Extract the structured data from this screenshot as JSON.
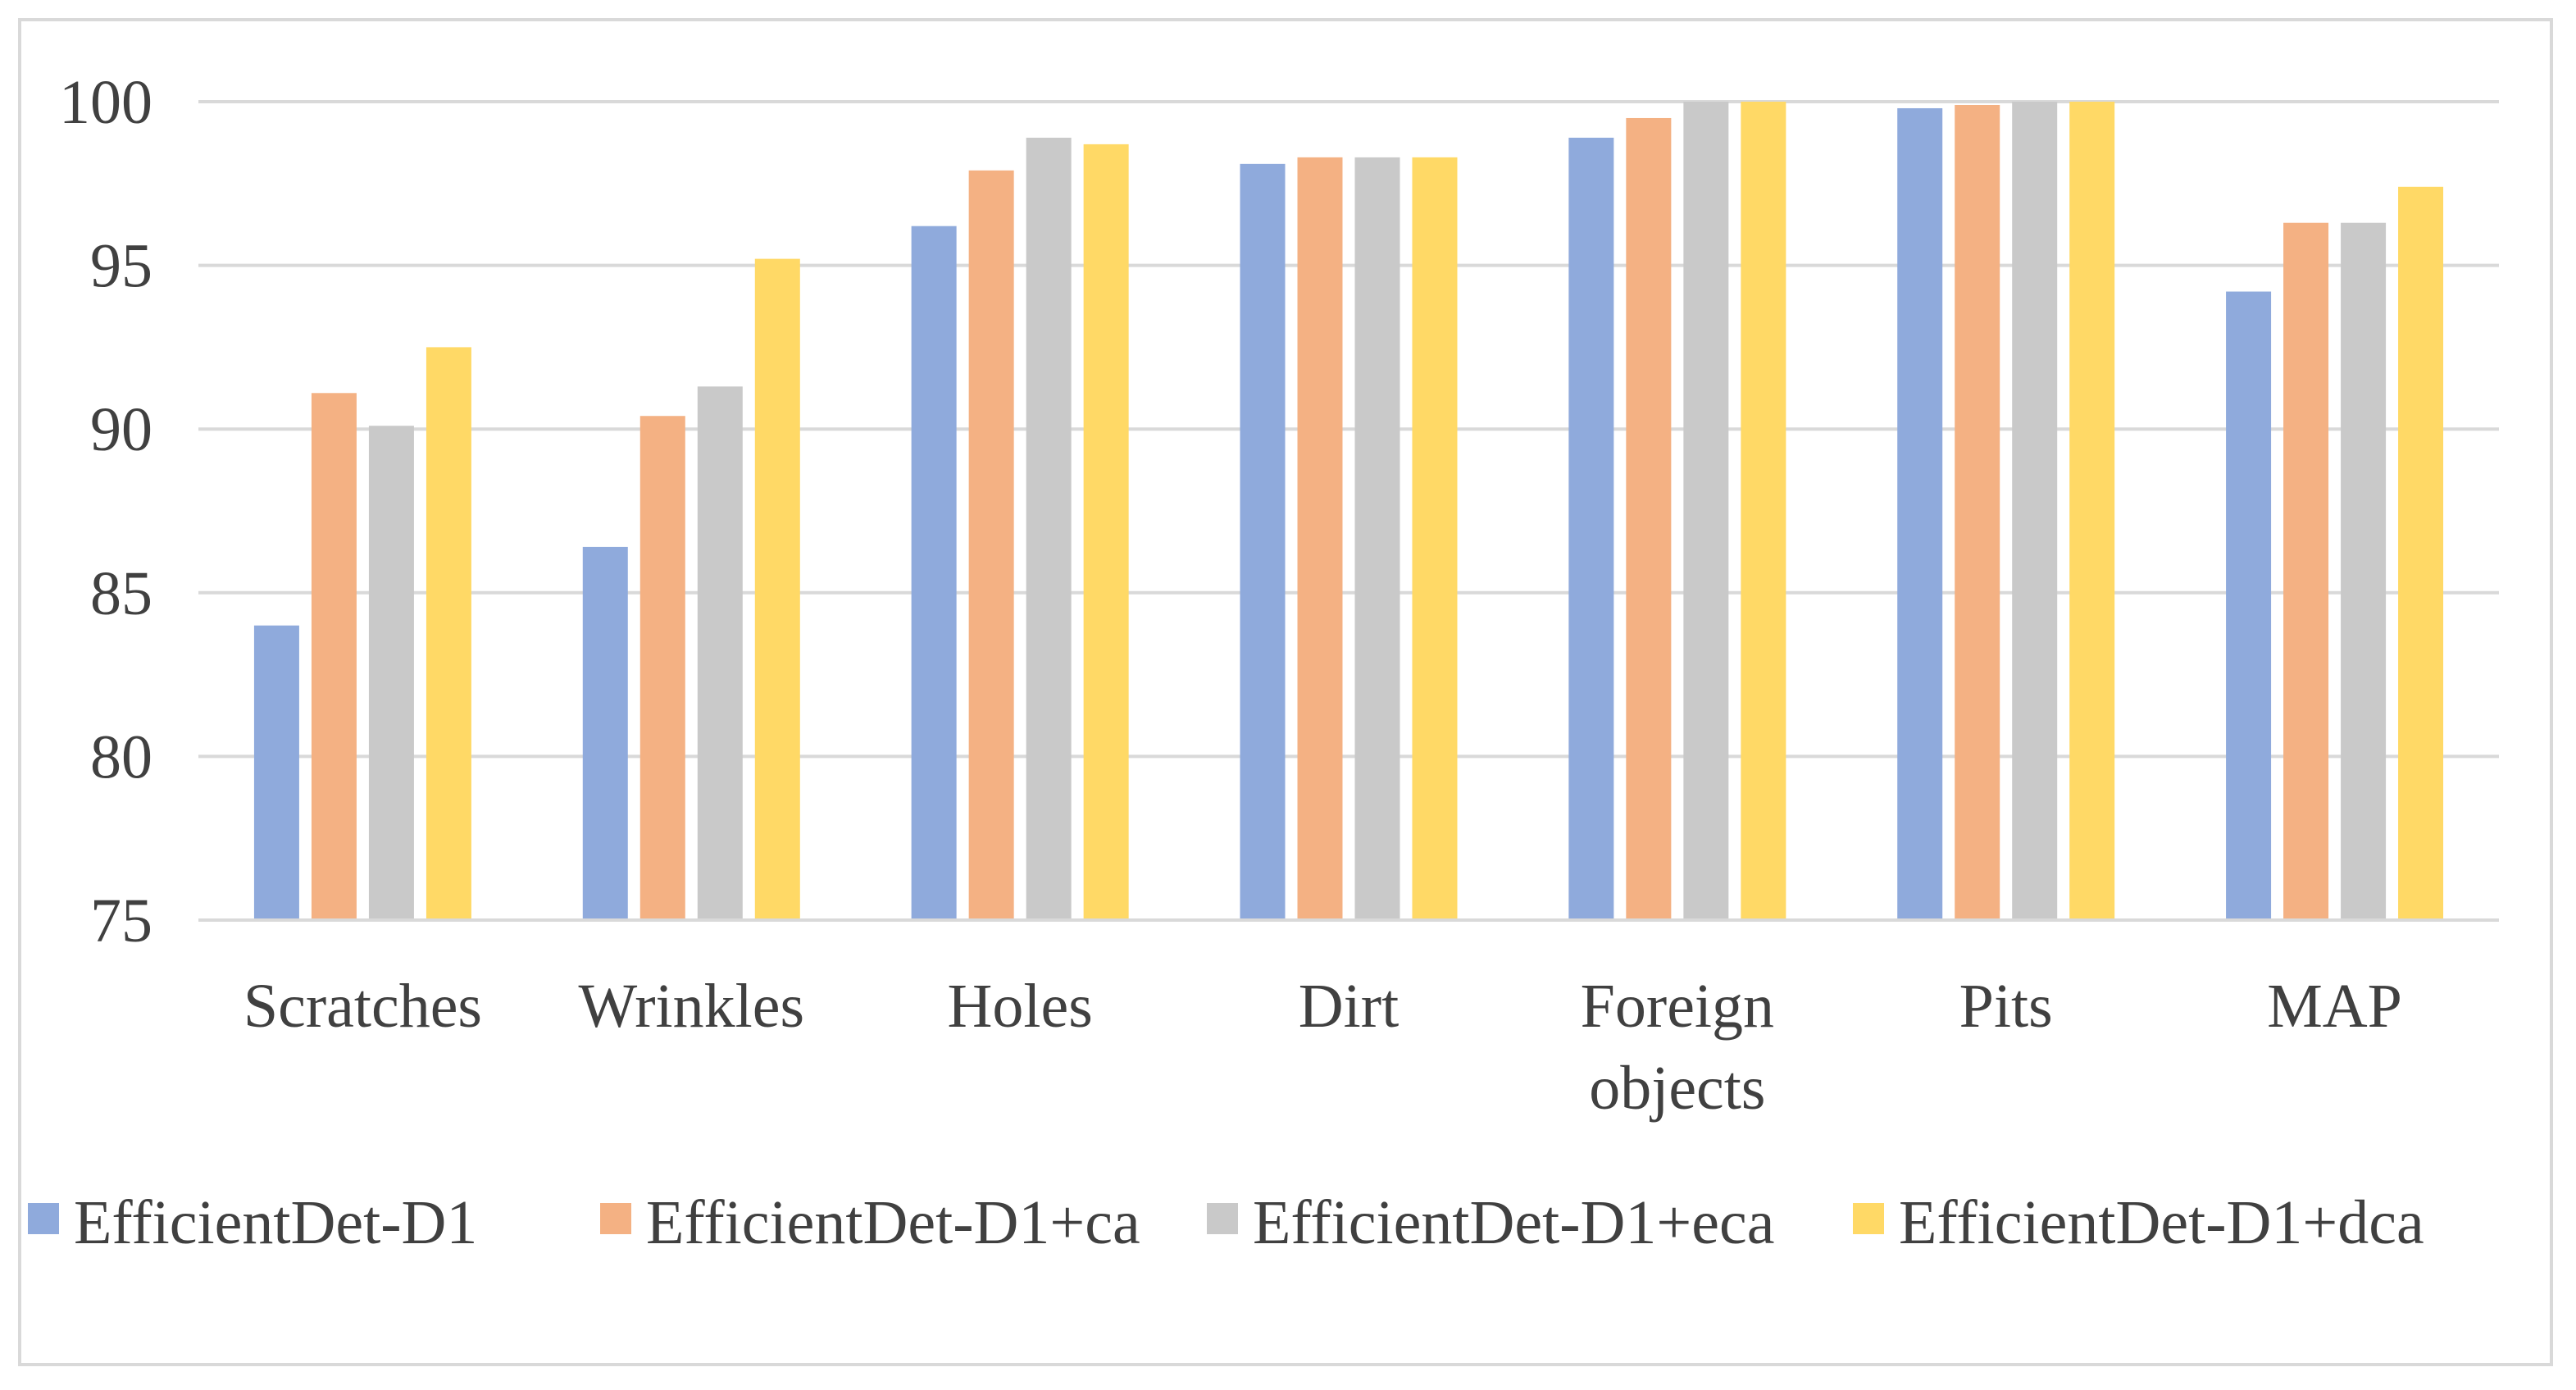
{
  "chart_data": {
    "type": "bar",
    "title": "",
    "xlabel": "",
    "ylabel": "",
    "ylim": [
      75,
      100
    ],
    "yticks": [
      75,
      80,
      85,
      90,
      95,
      100
    ],
    "grid": true,
    "legend_position": "bottom",
    "categories": [
      [
        "Scratches"
      ],
      [
        "Wrinkles"
      ],
      [
        "Holes"
      ],
      [
        "Dirt"
      ],
      [
        "Foreign",
        "objects"
      ],
      [
        "Pits"
      ],
      [
        "MAP"
      ]
    ],
    "series": [
      {
        "name": "EfficientDet-D1",
        "color": "#8faadc",
        "values": [
          84.0,
          86.4,
          96.2,
          98.1,
          98.9,
          99.8,
          94.2
        ]
      },
      {
        "name": "EfficientDet-D1+ca",
        "color": "#f4b183",
        "values": [
          91.1,
          90.4,
          97.9,
          98.3,
          99.5,
          99.9,
          96.3
        ]
      },
      {
        "name": "EfficientDet-D1+eca",
        "color": "#c9c9c9",
        "values": [
          90.1,
          91.3,
          98.9,
          98.3,
          100.0,
          100.0,
          96.3
        ]
      },
      {
        "name": "EfficientDet-D1+dca",
        "color": "#ffd966",
        "values": [
          92.5,
          95.2,
          98.7,
          98.3,
          100.0,
          100.0,
          97.4
        ]
      }
    ]
  }
}
